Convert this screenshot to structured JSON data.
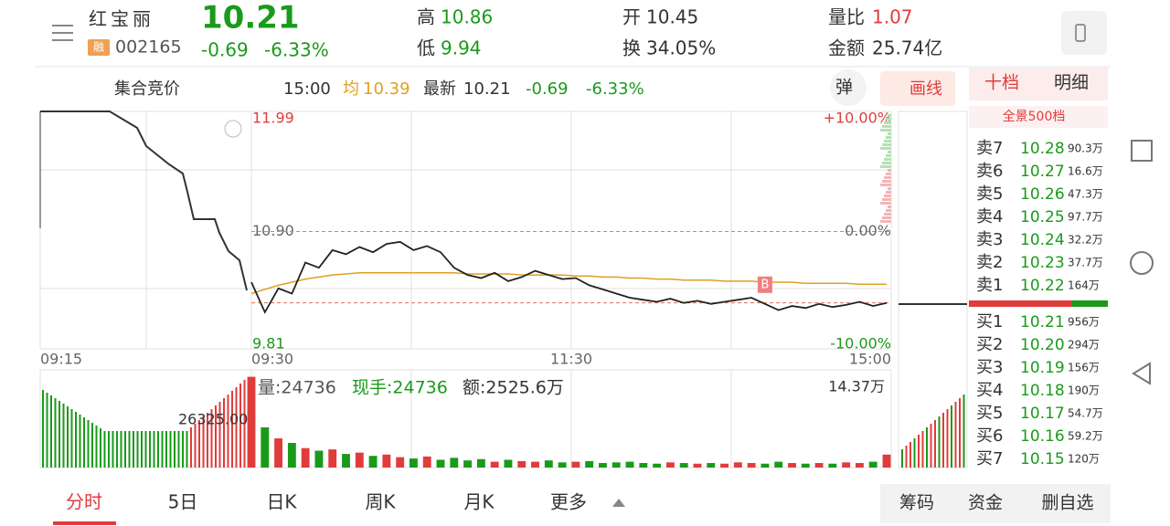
{
  "header": {
    "name": "红宝丽",
    "badge": "融",
    "code": "002165",
    "price": "10.21",
    "change": "-0.69",
    "change_pct": "-6.33%",
    "stats": [
      {
        "label": "高",
        "value": "10.86"
      },
      {
        "label": "低",
        "value": "9.94"
      },
      {
        "label": "开",
        "value": "10.45"
      },
      {
        "label": "换",
        "value": "34.05%"
      },
      {
        "label": "量比",
        "value": "1.07"
      },
      {
        "label": "金额",
        "value": "25.74亿"
      }
    ]
  },
  "toolbar": {
    "auction": "集合竞价",
    "time": "15:00",
    "avg_label": "均",
    "avg": "10.39",
    "latest_label": "最新",
    "latest": "10.21",
    "change": "-0.69",
    "change_pct": "-6.33%",
    "popup": "弹",
    "draw": "画线"
  },
  "side_tabs": [
    "十档",
    "明细"
  ],
  "depth_label": "全景500档",
  "asks": [
    {
      "label": "卖7",
      "price": "10.28",
      "vol": "90.3万"
    },
    {
      "label": "卖6",
      "price": "10.27",
      "vol": "16.6万"
    },
    {
      "label": "卖5",
      "price": "10.26",
      "vol": "47.3万"
    },
    {
      "label": "卖4",
      "price": "10.25",
      "vol": "97.7万"
    },
    {
      "label": "卖3",
      "price": "10.24",
      "vol": "32.2万"
    },
    {
      "label": "卖2",
      "price": "10.23",
      "vol": "37.7万"
    },
    {
      "label": "卖1",
      "price": "10.22",
      "vol": "164万"
    }
  ],
  "bids": [
    {
      "label": "买1",
      "price": "10.21",
      "vol": "956万"
    },
    {
      "label": "买2",
      "price": "10.20",
      "vol": "294万"
    },
    {
      "label": "买3",
      "price": "10.19",
      "vol": "156万"
    },
    {
      "label": "买4",
      "price": "10.18",
      "vol": "190万"
    },
    {
      "label": "买5",
      "price": "10.17",
      "vol": "54.7万"
    },
    {
      "label": "买6",
      "price": "10.16",
      "vol": "59.2万"
    },
    {
      "label": "买7",
      "price": "10.15",
      "vol": "120万"
    }
  ],
  "intraday": {
    "ylim": [
      9.81,
      11.99
    ],
    "yticks": [
      11.99,
      {
        "value": 10.9,
        "label": "10.90"
      },
      9.81
    ],
    "pct_labels": [
      "+10.00%",
      "0.00%",
      "-10.00%"
    ],
    "time_labels": [
      "09:15",
      "09:30",
      "11:30",
      "15:00"
    ],
    "marker": "B",
    "price": [
      10.41,
      10.12,
      10.35,
      10.3,
      10.6,
      10.55,
      10.72,
      10.68,
      10.75,
      10.7,
      10.78,
      10.8,
      10.72,
      10.76,
      10.7,
      10.55,
      10.48,
      10.45,
      10.5,
      10.42,
      10.46,
      10.52,
      10.48,
      10.44,
      10.45,
      10.38,
      10.34,
      10.3,
      10.26,
      10.24,
      10.22,
      10.25,
      10.21,
      10.23,
      10.2,
      10.22,
      10.24,
      10.26,
      10.2,
      10.14,
      10.18,
      10.16,
      10.2,
      10.17,
      10.19,
      10.22,
      10.18,
      10.21
    ],
    "avg": [
      10.3,
      10.34,
      10.38,
      10.41,
      10.44,
      10.46,
      10.48,
      10.49,
      10.5,
      10.5,
      10.5,
      10.5,
      10.5,
      10.5,
      10.5,
      10.5,
      10.49,
      10.49,
      10.49,
      10.49,
      10.48,
      10.48,
      10.48,
      10.48,
      10.47,
      10.47,
      10.46,
      10.46,
      10.45,
      10.45,
      10.44,
      10.44,
      10.43,
      10.43,
      10.43,
      10.42,
      10.42,
      10.42,
      10.41,
      10.41,
      10.41,
      10.4,
      10.4,
      10.4,
      10.4,
      10.39,
      10.39,
      10.39
    ],
    "volume_ylim": [
      0,
      143700
    ],
    "volume_max_label": "14.37万",
    "auction_volume_label": "26325.00",
    "volume_info": {
      "vol": "量:24736",
      "hand": "现手:24736",
      "amount": "额:2525.6万"
    },
    "volume": [
      140000,
      62000,
      45000,
      38000,
      30000,
      26000,
      28000,
      21000,
      23000,
      18000,
      20000,
      16000,
      14000,
      17000,
      12000,
      15000,
      11000,
      13000,
      9000,
      12000,
      10000,
      9000,
      11000,
      8000,
      9000,
      10000,
      7000,
      8000,
      9000,
      7000,
      6000,
      8000,
      7000,
      6000,
      7000,
      6000,
      8000,
      7000,
      6000,
      9000,
      7000,
      6000,
      7000,
      6000,
      8000,
      7000,
      9000,
      20000
    ]
  },
  "bottom_tabs": [
    "分时",
    "5日",
    "日K",
    "周K",
    "月K",
    "更多"
  ],
  "actions": [
    "筹码",
    "资金",
    "删自选"
  ]
}
